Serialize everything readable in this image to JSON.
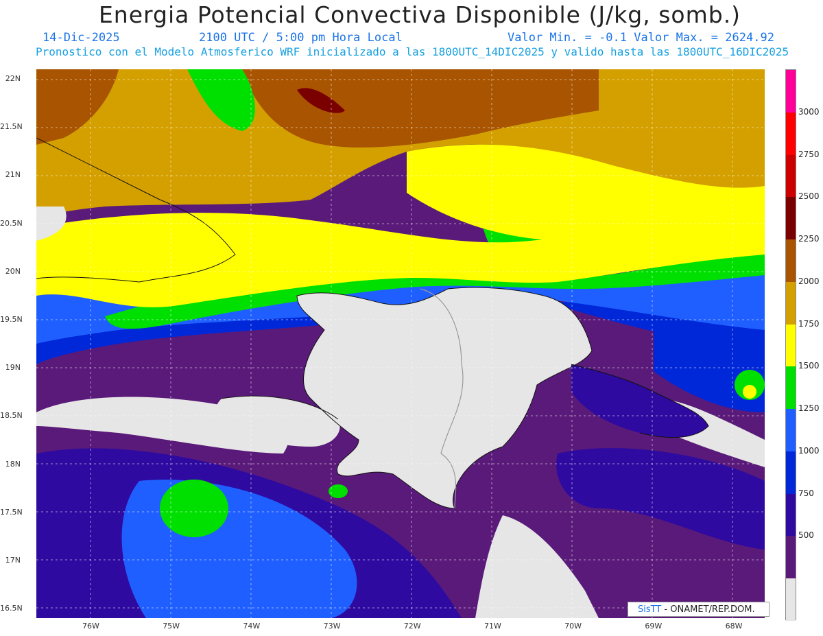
{
  "title": "Energia Potencial Convectiva Disponible (J/kg, somb.)",
  "date": "14-Dic-2025",
  "time": "2100 UTC / 5:00 pm Hora Local",
  "minmax": "Valor Min. = -0.1  Valor Max. = 2624.92",
  "forecast": "Pronostico con el Modelo Atmosferico WRF inicializado a las 1800UTC_14DIC2025 y valido hasta las  1800UTC_16DIC2025",
  "lat_ticks": [
    "22N",
    "21.5N",
    "21N",
    "20.5N",
    "20N",
    "19.5N",
    "19N",
    "18.5N",
    "18N",
    "17.5N",
    "17N",
    "16.5N"
  ],
  "lon_ticks": [
    "76W",
    "75W",
    "74W",
    "73W",
    "72W",
    "71W",
    "70W",
    "69W",
    "68W"
  ],
  "legend": {
    "labels": [
      "3000",
      "2750",
      "2500",
      "2250",
      "2000",
      "1750",
      "1500",
      "1250",
      "1000",
      "750",
      "500"
    ],
    "colors": [
      "#ff0099",
      "#ff0000",
      "#cc0000",
      "#7a0000",
      "#a85400",
      "#d4a000",
      "#ffff00",
      "#00e000",
      "#1f5fff",
      "#0028d8",
      "#2e0aa0",
      "#5a1a7a",
      "#e6e6e6"
    ]
  },
  "credit": {
    "brand": "SisTT",
    "text": " - ONAMET/REP.DOM."
  }
}
